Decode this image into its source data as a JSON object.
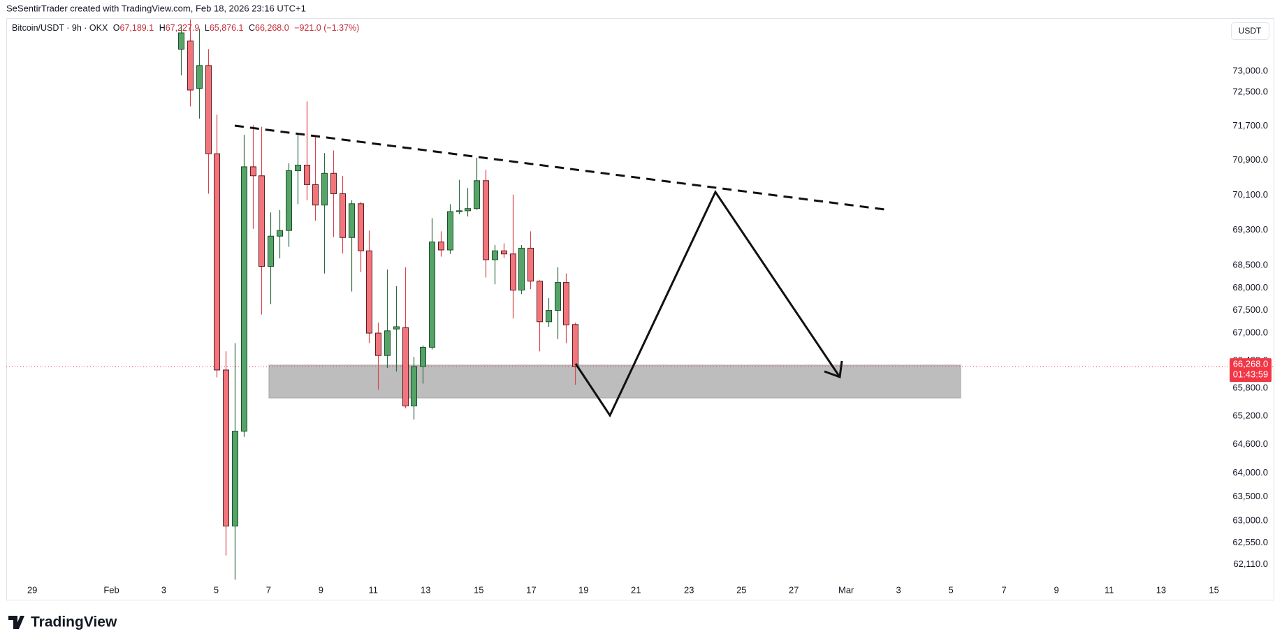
{
  "header": {
    "attribution": "SeSentirTrader created with TradingView.com, Feb 18, 2026 23:16 UTC+1"
  },
  "chart_data": {
    "type": "candlestick",
    "symbol": "Bitcoin/USDT · 9h · OKX",
    "legend": {
      "o_label": "O",
      "open": "67,189.1",
      "h_label": "H",
      "high": "67,227.9",
      "l_label": "L",
      "low": "65,876.1",
      "c_label": "C",
      "close": "66,268.0",
      "change": "−921.0 (−1.37%)"
    },
    "currency": "USDT",
    "log_scale": true,
    "up_color": "#55a467",
    "down_color": "#f2757c",
    "open": [
      73530,
      73726,
      72591,
      73137,
      71054,
      66195,
      62897,
      64881,
      70751,
      70543,
      68481,
      69162,
      69290,
      70660,
      70790,
      70340,
      69870,
      70600,
      70130,
      69130,
      69900,
      68830,
      67000,
      66510,
      67090,
      67120,
      65420,
      66270,
      66690,
      69030,
      68850,
      69720,
      69740,
      69790,
      70430,
      68630,
      68830,
      68760,
      67950,
      68890,
      68150,
      67250,
      67500,
      68120,
      67189.1
    ],
    "high": [
      74122,
      74250,
      74023,
      73530,
      71972,
      66600,
      66780,
      71493,
      71722,
      71684,
      69700,
      69756,
      70830,
      71530,
      72280,
      71490,
      71070,
      71130,
      70540,
      69980,
      69940,
      69290,
      67230,
      68410,
      68040,
      68460,
      66480,
      66730,
      69570,
      69270,
      69890,
      70450,
      70260,
      70960,
      70680,
      68960,
      69000,
      70110,
      68960,
      69270,
      68170,
      67770,
      68460,
      68320,
      67227.9
    ],
    "low": [
      72902,
      72165,
      71876,
      70130,
      66036,
      62294,
      61800,
      64760,
      69328,
      67409,
      67640,
      68660,
      68920,
      69890,
      69980,
      69510,
      68320,
      69140,
      68770,
      67920,
      68350,
      66780,
      65770,
      66240,
      66160,
      65370,
      65130,
      65900,
      66640,
      68700,
      68760,
      69660,
      69610,
      69760,
      68230,
      68080,
      68670,
      67320,
      67860,
      67970,
      66600,
      67140,
      66870,
      66780,
      65876.1
    ],
    "close": [
      73924,
      72552,
      73137,
      71054,
      66195,
      62897,
      64881,
      70751,
      70543,
      68481,
      69162,
      69290,
      70660,
      70790,
      70340,
      69870,
      70600,
      70130,
      69130,
      69900,
      68830,
      67000,
      66510,
      67050,
      67140,
      65420,
      66270,
      66690,
      69030,
      68850,
      69720,
      69740,
      69790,
      70430,
      68630,
      68830,
      68760,
      67950,
      68890,
      68150,
      67250,
      67500,
      68120,
      67180,
      66268.0
    ],
    "xlim": [
      -19.5,
      116.5
    ],
    "xticks": [
      {
        "value": -16.6,
        "label": "29"
      },
      {
        "value": -7.76,
        "label": "Feb"
      },
      {
        "value": -1.92,
        "label": "3"
      },
      {
        "value": 3.93,
        "label": "5"
      },
      {
        "value": 9.77,
        "label": "7"
      },
      {
        "value": 15.62,
        "label": "9"
      },
      {
        "value": 21.46,
        "label": "11"
      },
      {
        "value": 27.31,
        "label": "13"
      },
      {
        "value": 33.24,
        "label": "15"
      },
      {
        "value": 39.09,
        "label": "17"
      },
      {
        "value": 44.93,
        "label": "19"
      },
      {
        "value": 50.78,
        "label": "21"
      },
      {
        "value": 56.71,
        "label": "23"
      },
      {
        "value": 62.56,
        "label": "25"
      },
      {
        "value": 68.4,
        "label": "27"
      },
      {
        "value": 74.25,
        "label": "Mar"
      },
      {
        "value": 80.09,
        "label": "3"
      },
      {
        "value": 85.94,
        "label": "5"
      },
      {
        "value": 91.87,
        "label": "7"
      },
      {
        "value": 97.72,
        "label": "9"
      },
      {
        "value": 103.6,
        "label": "11"
      },
      {
        "value": 109.4,
        "label": "13"
      },
      {
        "value": 115.3,
        "label": "15"
      }
    ],
    "ylim": [
      61763,
      74281
    ],
    "yticks": [
      {
        "value": 73000,
        "label": "73,000.0"
      },
      {
        "value": 72500,
        "label": "72,500.0"
      },
      {
        "value": 71700,
        "label": "71,700.0"
      },
      {
        "value": 70900,
        "label": "70,900.0"
      },
      {
        "value": 70100,
        "label": "70,100.0"
      },
      {
        "value": 69300,
        "label": "69,300.0"
      },
      {
        "value": 68500,
        "label": "68,500.0"
      },
      {
        "value": 68000,
        "label": "68,000.0"
      },
      {
        "value": 67500,
        "label": "67,500.0"
      },
      {
        "value": 67000,
        "label": "67,000.0"
      },
      {
        "value": 66400,
        "label": "66,400.0"
      },
      {
        "value": 65800,
        "label": "65,800.0"
      },
      {
        "value": 65200,
        "label": "65,200.0"
      },
      {
        "value": 64600,
        "label": "64,600.0"
      },
      {
        "value": 64000,
        "label": "64,000.0"
      },
      {
        "value": 63500,
        "label": "63,500.0"
      },
      {
        "value": 63000,
        "label": "63,000.0"
      },
      {
        "value": 62550,
        "label": "62,550.0"
      },
      {
        "value": 62110,
        "label": "62,110.0"
      }
    ],
    "last_price": {
      "value": 66268.0,
      "label": "66,268.0"
    },
    "countdown": "01:43:59"
  },
  "footer": {
    "logo": "TradingView"
  }
}
